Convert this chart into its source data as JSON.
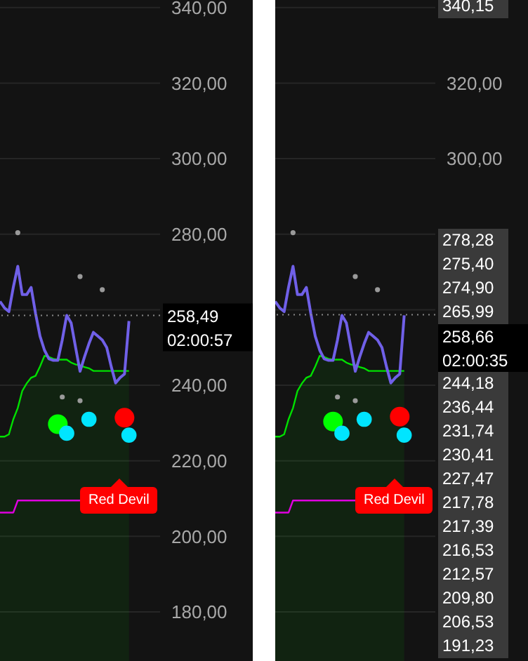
{
  "chart_data": [
    {
      "type": "line",
      "categories": [
        null,
        null,
        null,
        null,
        null,
        null,
        null,
        null,
        null,
        null,
        null,
        null,
        null,
        null,
        null,
        null,
        null,
        null,
        null,
        null,
        null,
        null,
        null,
        null,
        null,
        null,
        null,
        null,
        null,
        null,
        null,
        null,
        null,
        null,
        null,
        null,
        null
      ],
      "series": [
        {
          "type": "area",
          "color": "#00e000",
          "values": [
            226.4,
            226.4,
            227,
            231,
            234,
            238.5,
            240.5,
            242,
            242.5,
            245,
            247.8,
            247.5,
            247,
            246.8,
            246.8,
            246.8,
            246,
            245.5,
            245.3,
            244.8,
            244.5,
            243.8,
            243.8,
            243.8,
            243.8,
            243.8,
            243.8,
            243.8,
            243.8,
            243.8,
            null,
            null,
            null,
            null,
            null,
            null,
            null
          ]
        },
        {
          "color": "#e000e0",
          "values": [
            206.3,
            206.3,
            206.3,
            206.3,
            209.5,
            209.5,
            209.5,
            209.5,
            209.5,
            209.5,
            209.5,
            209.5,
            209.5,
            209.5,
            209.5,
            209.5,
            209.5,
            209.5,
            209.5,
            null,
            null,
            null,
            null,
            null,
            null,
            null,
            null,
            null,
            null,
            null,
            null,
            null,
            null,
            null,
            null,
            null,
            null
          ]
        },
        {
          "color": "#7060e8",
          "values": [
            262.2,
            260.5,
            259.5,
            266,
            271.5,
            264,
            264,
            265.9,
            259,
            253,
            249.3,
            247,
            246.6,
            246.6,
            252,
            258.5,
            256.5,
            250,
            243.7,
            247.5,
            251,
            254,
            253,
            252,
            250,
            245,
            240.6,
            242,
            243,
            257,
            null,
            null,
            null,
            null,
            null,
            null,
            null
          ]
        },
        {
          "type": "scatter",
          "color": "#9a9a9a",
          "values": [
            null,
            null,
            null,
            null,
            280.4,
            null,
            null,
            null,
            null,
            null,
            null,
            null,
            null,
            null,
            236.9,
            null,
            null,
            null,
            268.8,
            null,
            null,
            null,
            null,
            265.3,
            null,
            null,
            null,
            null,
            null,
            null,
            null,
            null,
            null,
            null,
            null,
            null,
            null
          ]
        },
        {
          "type": "scatter",
          "color": "#9a9a9a",
          "values": [
            null,
            null,
            null,
            null,
            null,
            null,
            null,
            null,
            null,
            null,
            null,
            null,
            null,
            null,
            null,
            null,
            null,
            null,
            235.9,
            null,
            null,
            null,
            null,
            null,
            null,
            null,
            null,
            null,
            null,
            null,
            null,
            null,
            null,
            null,
            null,
            null,
            null
          ]
        },
        {
          "type": "bubble",
          "color": "#00ff00",
          "values": [
            null,
            null,
            null,
            null,
            null,
            null,
            null,
            null,
            null,
            null,
            null,
            null,
            null,
            229.7,
            null,
            null,
            null,
            null,
            null,
            null,
            null,
            null,
            null,
            null,
            null,
            null,
            null,
            null,
            null,
            null,
            null,
            null,
            null,
            null,
            null,
            null,
            null
          ],
          "sizes": [
            null,
            null,
            null,
            null,
            null,
            null,
            null,
            null,
            null,
            null,
            null,
            null,
            null,
            1,
            null,
            null,
            null,
            null,
            null,
            null,
            null,
            null,
            null,
            null,
            null,
            null,
            null,
            null,
            null,
            null,
            null,
            null,
            null,
            null,
            null,
            null,
            null
          ]
        },
        {
          "type": "bubble",
          "color": "#00e5ff",
          "values": [
            null,
            null,
            null,
            null,
            null,
            null,
            null,
            null,
            null,
            null,
            null,
            null,
            null,
            null,
            null,
            227.3,
            null,
            null,
            null,
            null,
            231.0,
            null,
            null,
            null,
            null,
            null,
            null,
            null,
            null,
            226.8,
            null,
            null,
            null,
            null,
            null,
            null,
            null
          ],
          "sizes": [
            null,
            null,
            null,
            null,
            null,
            null,
            null,
            null,
            null,
            null,
            null,
            null,
            null,
            null,
            null,
            0.6,
            null,
            null,
            null,
            null,
            0.6,
            null,
            null,
            null,
            null,
            null,
            null,
            null,
            null,
            0.6,
            null,
            null,
            null,
            null,
            null,
            null,
            null
          ]
        },
        {
          "type": "bubble",
          "color": "#ff0000",
          "values": [
            null,
            null,
            null,
            null,
            null,
            null,
            null,
            null,
            null,
            null,
            null,
            null,
            null,
            null,
            null,
            null,
            null,
            null,
            null,
            null,
            null,
            null,
            null,
            null,
            null,
            null,
            null,
            null,
            231.4,
            null,
            null,
            null,
            null,
            null,
            null,
            null,
            null
          ],
          "sizes": [
            null,
            null,
            null,
            null,
            null,
            null,
            null,
            null,
            null,
            null,
            null,
            null,
            null,
            null,
            null,
            null,
            null,
            null,
            null,
            null,
            null,
            null,
            null,
            null,
            null,
            null,
            null,
            null,
            1,
            null,
            null,
            null,
            null,
            null,
            null,
            null,
            null
          ]
        }
      ],
      "ylim": [
        167,
        342
      ],
      "yticks": [
        {
          "value": 340,
          "label": "340,00"
        },
        {
          "value": 320,
          "label": "320,00"
        },
        {
          "value": 300,
          "label": "300,00"
        },
        {
          "value": 280,
          "label": "280,00"
        },
        {
          "value": 260,
          "label": null
        },
        {
          "value": 240,
          "label": "240,00"
        },
        {
          "value": 220,
          "label": "220,00"
        },
        {
          "value": 200,
          "label": "200,00"
        },
        {
          "value": 180,
          "label": "180,00"
        }
      ],
      "grid": "y",
      "tick_labels": "y",
      "ref_lines": [
        {
          "axis": "y",
          "value": 258.49,
          "label": "258,49\n02:00:57",
          "color": "#888888",
          "line_style": "dotted"
        }
      ],
      "annotations": [
        "Red Devil"
      ]
    },
    {
      "type": "line",
      "categories": [
        null,
        null,
        null,
        null,
        null,
        null,
        null,
        null,
        null,
        null,
        null,
        null,
        null,
        null,
        null,
        null,
        null,
        null,
        null,
        null,
        null,
        null,
        null,
        null,
        null,
        null,
        null,
        null,
        null,
        null,
        null,
        null,
        null,
        null,
        null,
        null,
        null
      ],
      "series": [
        {
          "type": "area",
          "color": "#00e000",
          "values": [
            226.4,
            226.4,
            227,
            231,
            234,
            238.5,
            240.5,
            242,
            242.5,
            245,
            247.8,
            247.5,
            247,
            246.8,
            246.8,
            246.8,
            246,
            245.5,
            245.3,
            244.8,
            244.5,
            243.8,
            243.8,
            243.8,
            243.8,
            243.8,
            243.8,
            243.8,
            243.8,
            243.8,
            null,
            null,
            null,
            null,
            null,
            null,
            null
          ]
        },
        {
          "color": "#e000e0",
          "values": [
            206.3,
            206.3,
            206.3,
            206.3,
            209.5,
            209.5,
            209.5,
            209.5,
            209.5,
            209.5,
            209.5,
            209.5,
            209.5,
            209.5,
            209.5,
            209.5,
            209.5,
            209.5,
            209.5,
            null,
            null,
            null,
            null,
            null,
            null,
            null,
            null,
            null,
            null,
            null,
            null,
            null,
            null,
            null,
            null,
            null,
            null
          ]
        },
        {
          "color": "#7060e8",
          "values": [
            262.2,
            260.5,
            259.5,
            266,
            271.5,
            264,
            264,
            265.9,
            259,
            253,
            249.3,
            247,
            246.6,
            246.6,
            252,
            258.5,
            256.5,
            250,
            243.7,
            247.5,
            251,
            254,
            253,
            252,
            250,
            245,
            240.6,
            242,
            243,
            258.5,
            null,
            null,
            null,
            null,
            null,
            null,
            null
          ]
        },
        {
          "type": "scatter",
          "color": "#9a9a9a",
          "values": [
            null,
            null,
            null,
            null,
            280.4,
            null,
            null,
            null,
            null,
            null,
            null,
            null,
            null,
            null,
            236.9,
            null,
            null,
            null,
            268.8,
            null,
            null,
            null,
            null,
            265.3,
            null,
            null,
            null,
            null,
            null,
            null,
            null,
            null,
            null,
            null,
            null,
            null,
            null
          ]
        },
        {
          "type": "scatter",
          "color": "#9a9a9a",
          "values": [
            null,
            null,
            null,
            null,
            null,
            null,
            null,
            null,
            null,
            null,
            null,
            null,
            null,
            null,
            null,
            null,
            null,
            null,
            235.9,
            null,
            null,
            null,
            null,
            null,
            null,
            null,
            null,
            null,
            null,
            null,
            null,
            null,
            null,
            null,
            null,
            null,
            null
          ]
        },
        {
          "type": "bubble",
          "color": "#00ff00",
          "values": [
            null,
            null,
            null,
            null,
            null,
            null,
            null,
            null,
            null,
            null,
            null,
            null,
            null,
            230.4,
            null,
            null,
            null,
            null,
            null,
            null,
            null,
            null,
            null,
            null,
            null,
            null,
            null,
            null,
            null,
            null,
            null,
            null,
            null,
            null,
            null,
            null,
            null
          ],
          "sizes": [
            null,
            null,
            null,
            null,
            null,
            null,
            null,
            null,
            null,
            null,
            null,
            null,
            null,
            1,
            null,
            null,
            null,
            null,
            null,
            null,
            null,
            null,
            null,
            null,
            null,
            null,
            null,
            null,
            null,
            null,
            null,
            null,
            null,
            null,
            null,
            null,
            null
          ]
        },
        {
          "type": "bubble",
          "color": "#00e5ff",
          "values": [
            null,
            null,
            null,
            null,
            null,
            null,
            null,
            null,
            null,
            null,
            null,
            null,
            null,
            null,
            null,
            227.3,
            null,
            null,
            null,
            null,
            231.0,
            null,
            null,
            null,
            null,
            null,
            null,
            null,
            null,
            226.8,
            null,
            null,
            null,
            null,
            null,
            null,
            null
          ],
          "sizes": [
            null,
            null,
            null,
            null,
            null,
            null,
            null,
            null,
            null,
            null,
            null,
            null,
            null,
            null,
            null,
            0.6,
            null,
            null,
            null,
            null,
            0.6,
            null,
            null,
            null,
            null,
            null,
            null,
            null,
            null,
            0.6,
            null,
            null,
            null,
            null,
            null,
            null,
            null
          ]
        },
        {
          "type": "bubble",
          "color": "#ff0000",
          "values": [
            null,
            null,
            null,
            null,
            null,
            null,
            null,
            null,
            null,
            null,
            null,
            null,
            null,
            null,
            null,
            null,
            null,
            null,
            null,
            null,
            null,
            null,
            null,
            null,
            null,
            null,
            null,
            null,
            231.7,
            null,
            null,
            null,
            null,
            null,
            null,
            null,
            null
          ],
          "sizes": [
            null,
            null,
            null,
            null,
            null,
            null,
            null,
            null,
            null,
            null,
            null,
            null,
            null,
            null,
            null,
            null,
            null,
            null,
            null,
            null,
            null,
            null,
            null,
            null,
            null,
            null,
            null,
            null,
            1,
            null,
            null,
            null,
            null,
            null,
            null,
            null,
            null
          ]
        }
      ],
      "ylim": [
        167,
        342
      ],
      "yticks": [
        {
          "value": 340,
          "label": null
        },
        {
          "value": 320,
          "label": "320,00"
        },
        {
          "value": 300,
          "label": "300,00"
        },
        {
          "value": 280,
          "label": null
        },
        {
          "value": 260,
          "label": null
        },
        {
          "value": 240,
          "label": null
        },
        {
          "value": 220,
          "label": null
        },
        {
          "value": 200,
          "label": null
        },
        {
          "value": 180,
          "label": null
        }
      ],
      "grid": "y",
      "tick_labels": "y",
      "ref_lines": [
        {
          "axis": "y",
          "value": 258.66,
          "label": "258,66\n02:00:35",
          "color": "#888888",
          "line_style": "dotted"
        }
      ],
      "annotations": [
        "Red Devil",
        "340,15",
        "278,28",
        "275,40",
        "274,90",
        "265,99",
        "244,18",
        "236,44",
        "231,74",
        "230,41",
        "227,47",
        "217,78",
        "217,39",
        "216,53",
        "212,57",
        "209,80",
        "206,53",
        "191,23"
      ]
    }
  ]
}
